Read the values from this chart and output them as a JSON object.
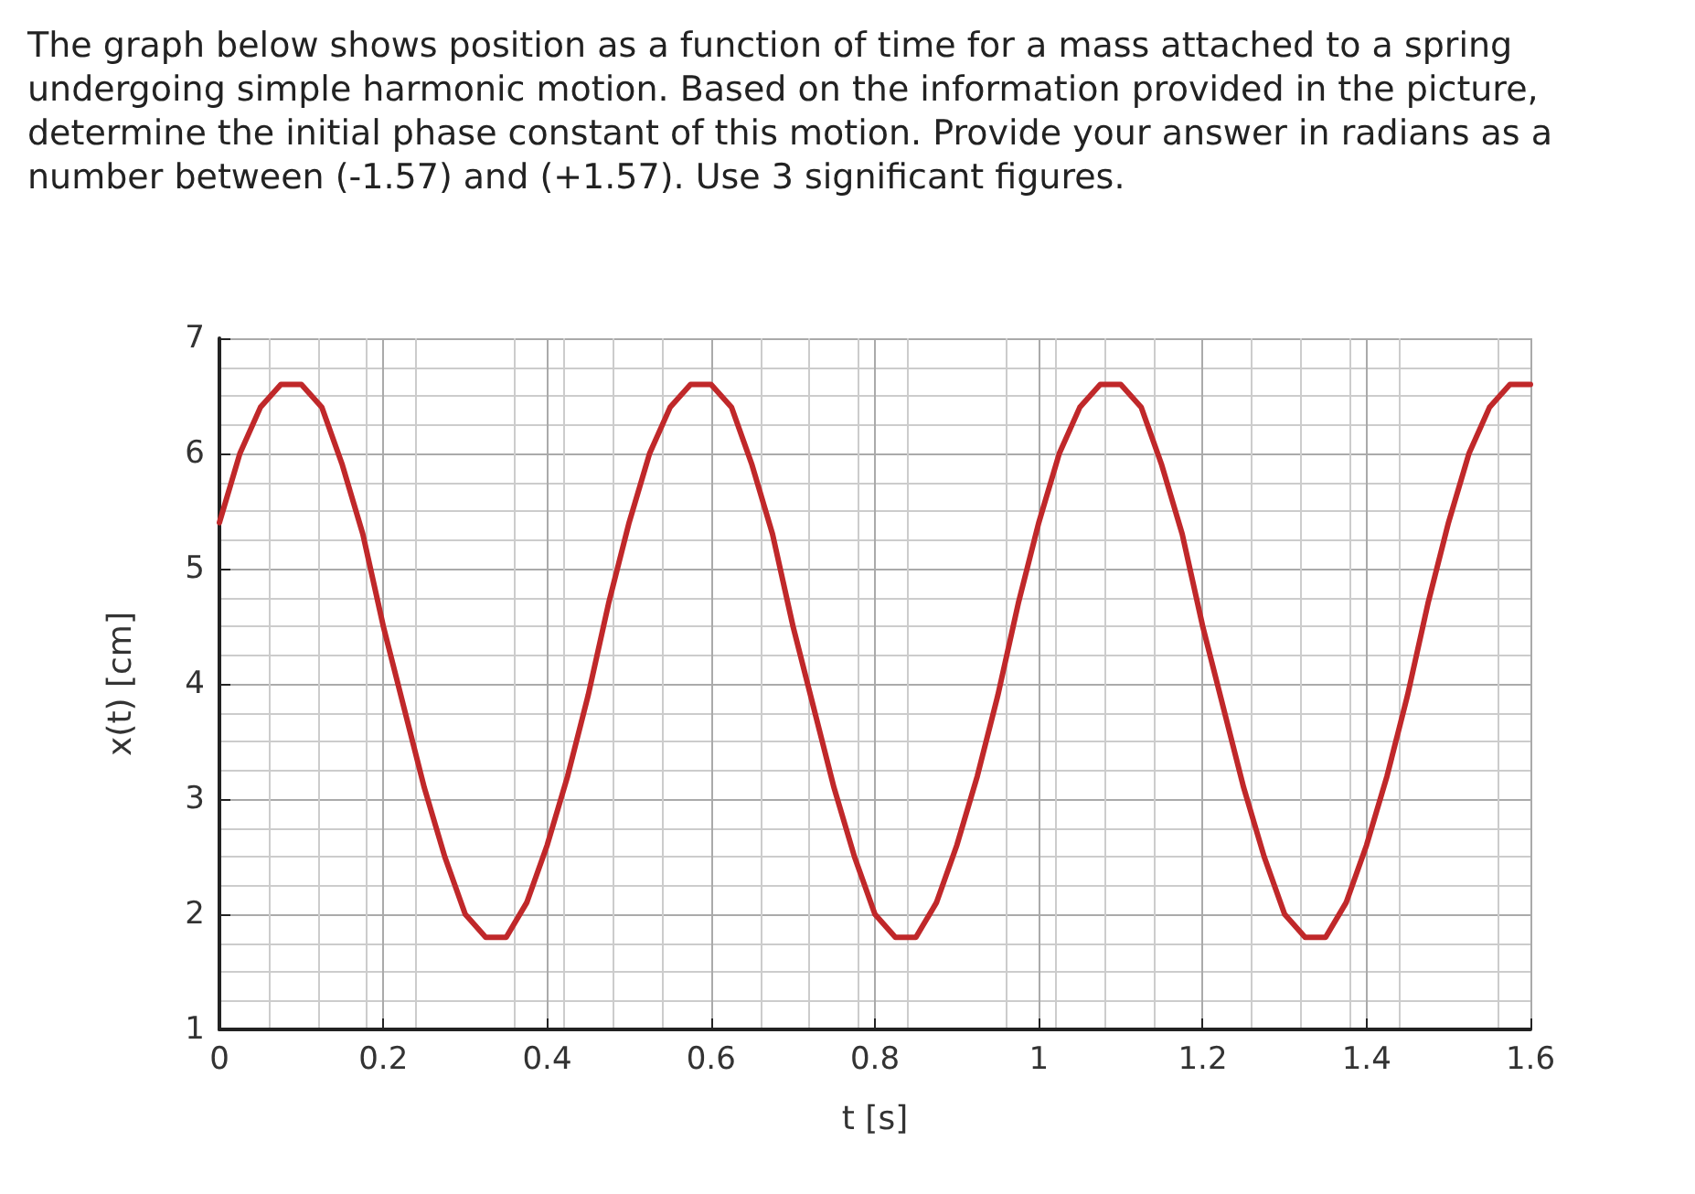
{
  "chart_data": {
    "type": "line",
    "title": "The graph below shows position as a function of time for a mass attached to a spring undergoing simple harmonic motion. Based on the information provided in the picture, determine the initial phase constant of this motion. Provide your answer in radians as a number between (-1.57) and (+1.57). Use 3 significant figures.",
    "xlabel": "t [s]",
    "ylabel": "x(t) [cm]",
    "xlim": [
      0,
      1.6
    ],
    "xticks": [
      0,
      0.2,
      0.4,
      0.6,
      0.8,
      1,
      1.2,
      1.4,
      1.6
    ],
    "ylim": [
      1,
      7
    ],
    "yticks": [
      1,
      2,
      3,
      4,
      5,
      6,
      7
    ],
    "grid": true,
    "marker": "none",
    "line_style": "solid",
    "series": [
      {
        "color": "#c0282a",
        "x": [
          0,
          0.025,
          0.05,
          0.075,
          0.1,
          0.125,
          0.15,
          0.175,
          0.2,
          0.225,
          0.25,
          0.275,
          0.3,
          0.325,
          0.35,
          0.375,
          0.4,
          0.425,
          0.45,
          0.475,
          0.5,
          0.525,
          0.55,
          0.575,
          0.6,
          0.625,
          0.65,
          0.675,
          0.7,
          0.725,
          0.75,
          0.775,
          0.8,
          0.825,
          0.85,
          0.875,
          0.9,
          0.925,
          0.95,
          0.975,
          1,
          1.025,
          1.05,
          1.075,
          1.1,
          1.125,
          1.15,
          1.175,
          1.2,
          1.225,
          1.25,
          1.275,
          1.3,
          1.325,
          1.35,
          1.375,
          1.4,
          1.425,
          1.45,
          1.475,
          1.5,
          1.525,
          1.55,
          1.575,
          1.6
        ],
        "values": [
          5.4,
          6.0,
          6.4,
          6.6,
          6.6,
          6.4,
          5.9,
          5.3,
          4.5,
          3.8,
          3.1,
          2.5,
          2.0,
          1.8,
          1.8,
          2.1,
          2.6,
          3.2,
          3.9,
          4.7,
          5.4,
          6.0,
          6.4,
          6.6,
          6.6,
          6.4,
          5.9,
          5.3,
          4.5,
          3.8,
          3.1,
          2.5,
          2.0,
          1.8,
          1.8,
          2.1,
          2.6,
          3.2,
          3.9,
          4.7,
          5.4,
          6.0,
          6.4,
          6.6,
          6.6,
          6.4,
          5.9,
          5.3,
          4.5,
          3.8,
          3.1,
          2.5,
          2.0,
          1.8,
          1.8,
          2.1,
          2.6,
          3.2,
          3.9,
          4.7,
          5.4,
          6.0,
          6.4,
          6.6,
          6.6
        ]
      }
    ]
  }
}
